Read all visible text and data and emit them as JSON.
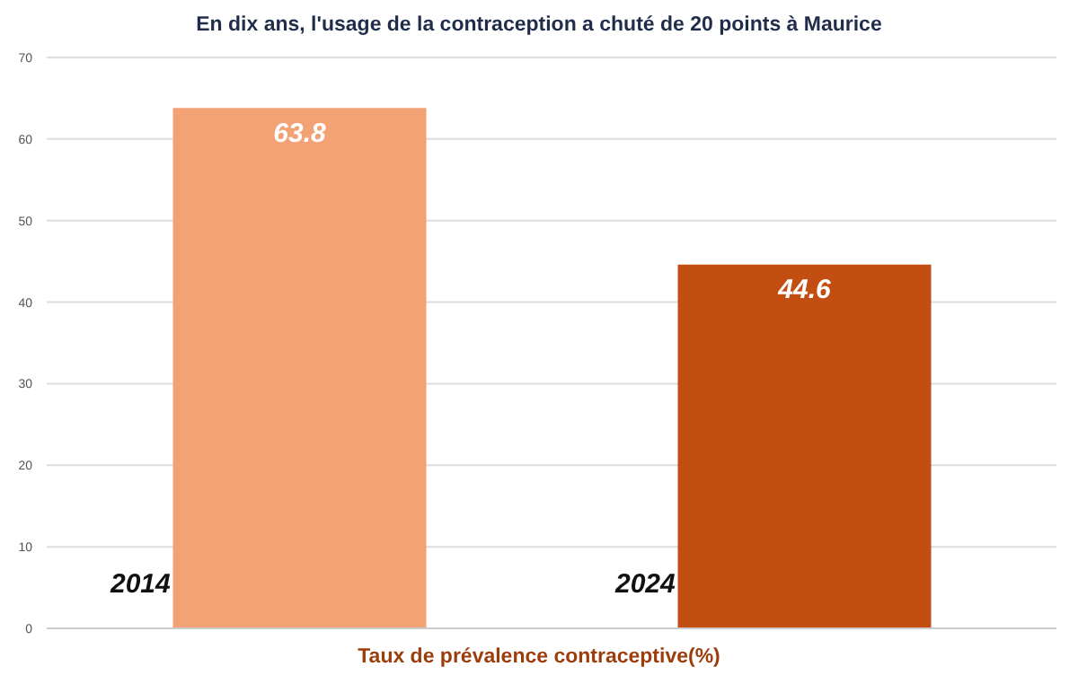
{
  "chart_data": {
    "type": "bar",
    "title": "En dix ans, l'usage de la contraception a chuté de 20 points à Maurice",
    "xlabel": "Taux de prévalence contraceptive(%)",
    "categories": [
      "2014",
      "2024"
    ],
    "values": [
      63.8,
      44.6
    ],
    "colors": [
      "#f2a274",
      "#c24e12"
    ],
    "ylim": [
      0,
      70
    ],
    "yticks": [
      0,
      10,
      20,
      30,
      40,
      50,
      60,
      70
    ],
    "grid": "y",
    "data_labels": true
  }
}
